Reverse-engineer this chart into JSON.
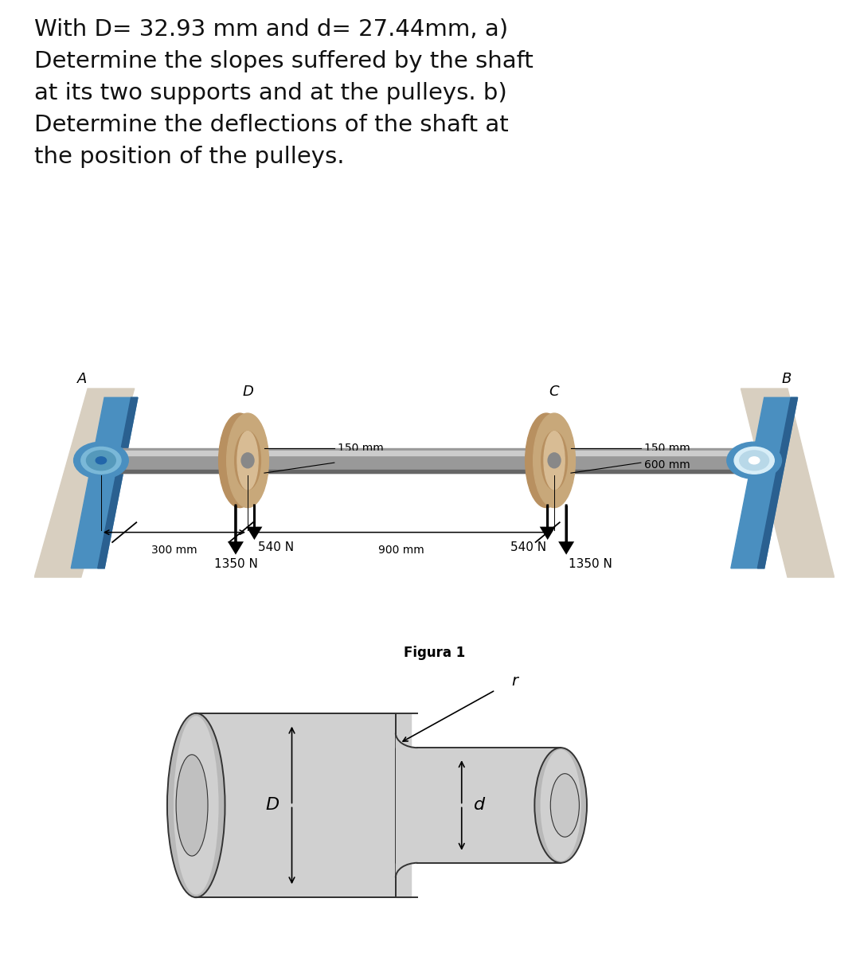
{
  "title_text": "With D= 32.93 mm and d= 27.44mm, a)\nDetermine the slopes suffered by the shaft\nat its two supports and at the pulleys. b)\nDetermine the deflections of the shaft at\nthe position of the pulleys.",
  "title_fontsize": 21,
  "background_color": "#ffffff",
  "fig1_caption": "Figura 1",
  "dim_300mm": "300 mm",
  "dim_900mm": "900 mm",
  "dim_150mm_D": "150 mm",
  "dim_150mm_C": "150 mm",
  "dim_600mm": "600 mm",
  "force_D_left": "1350 N",
  "force_D_right": "540 N",
  "force_C_left": "540 N",
  "force_C_right": "1350 N",
  "label_A": "A",
  "label_B": "B",
  "label_D_pulley": "D",
  "label_C_pulley": "C",
  "label_r": "r",
  "label_D_dim": "D",
  "label_d_dim": "d"
}
